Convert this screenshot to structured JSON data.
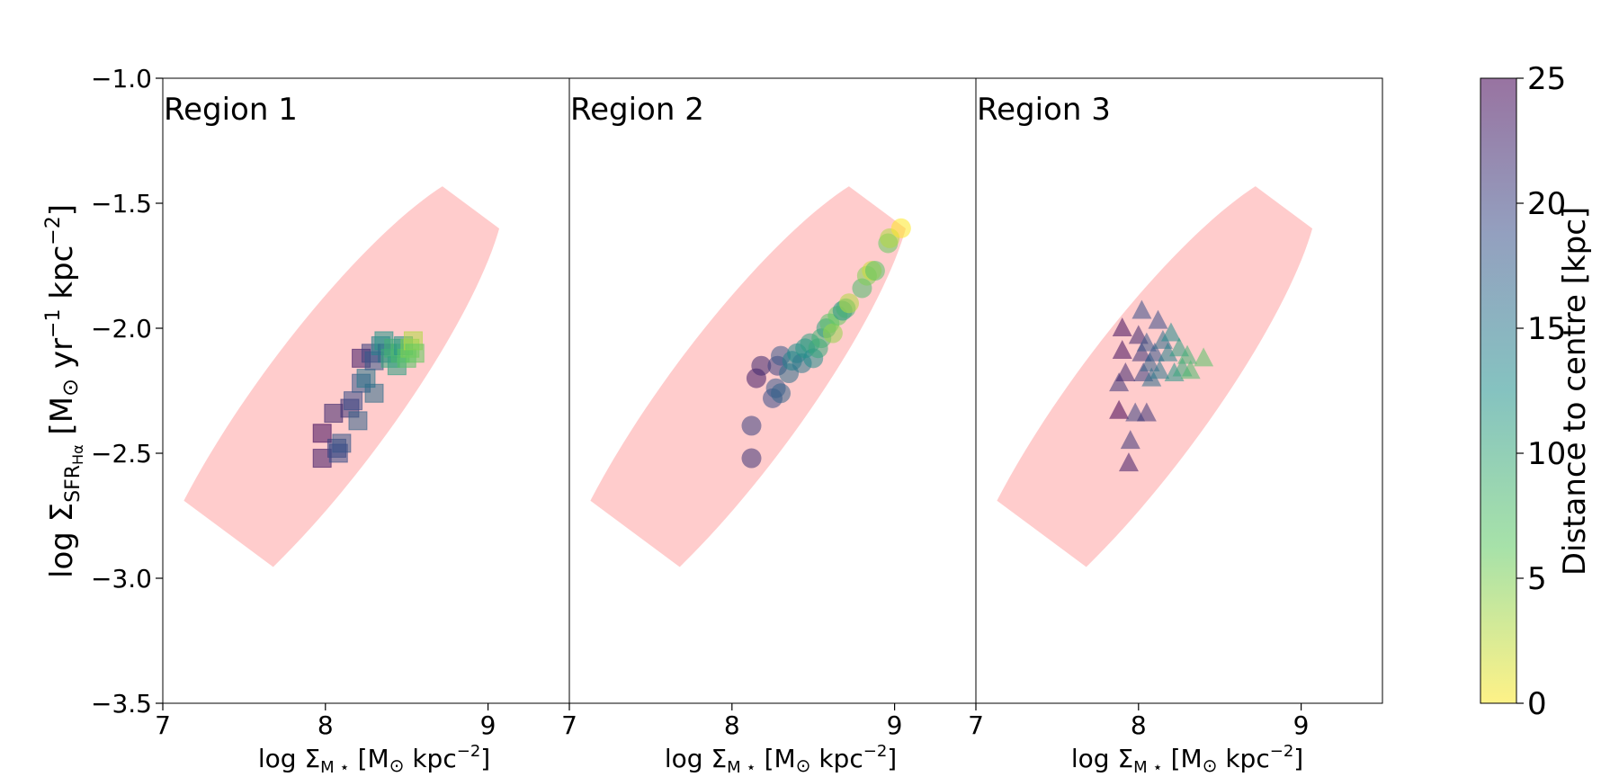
{
  "figure": {
    "ylabel_main": "log Σ",
    "ylabel_sub": "SFR",
    "ylabel_subsub": "Hα",
    "ylabel_units": "[M",
    "ylabel_units_sun": "⊙",
    "ylabel_units_rest": "yr",
    "ylabel_exp1": "−1",
    "ylabel_units_kpc": "kpc",
    "ylabel_exp2": "−2",
    "ylabel_close": "]",
    "xlabel_main": "log Σ",
    "xlabel_sub": "M ⋆",
    "xlabel_units": "[M",
    "xlabel_sun": "⊙",
    "xlabel_kpc": "kpc",
    "xlabel_exp": "−2",
    "xlabel_close": "]"
  },
  "colorbar": {
    "label": "Distance to centre [kpc]",
    "range": [
      0,
      25
    ],
    "ticks": [
      "0",
      "5",
      "10",
      "15",
      "20",
      "25"
    ],
    "colors": [
      "#fde725",
      "#5ec962",
      "#21918c",
      "#3b528b",
      "#440154"
    ],
    "alpha": 0.55
  },
  "chart_data": [
    {
      "type": "scatter",
      "title": "Region 1",
      "marker": "square",
      "xlim": [
        7,
        9.5
      ],
      "ylim": [
        -3.5,
        -1.0
      ],
      "x_ticks": [
        "7",
        "8",
        "9"
      ],
      "y_ticks": [
        "−3.5",
        "−3.0",
        "−2.5",
        "−2.0",
        "−1.5",
        "−1.0"
      ],
      "ellipse": {
        "center": [
          8.0,
          -2.3
        ],
        "semi_major_data_x": 1.05,
        "semi_major_data_y": 0.92,
        "semi_minor": 0.27,
        "color": "#ffcccc"
      },
      "points": [
        {
          "x": 7.98,
          "y": -2.42,
          "d": 24
        },
        {
          "x": 7.98,
          "y": -2.52,
          "d": 23
        },
        {
          "x": 8.07,
          "y": -2.48,
          "d": 20
        },
        {
          "x": 8.1,
          "y": -2.46,
          "d": 18
        },
        {
          "x": 8.08,
          "y": -2.5,
          "d": 19
        },
        {
          "x": 8.05,
          "y": -2.34,
          "d": 22
        },
        {
          "x": 8.15,
          "y": -2.32,
          "d": 21
        },
        {
          "x": 8.17,
          "y": -2.29,
          "d": 19
        },
        {
          "x": 8.2,
          "y": -2.37,
          "d": 17
        },
        {
          "x": 8.22,
          "y": -2.22,
          "d": 18
        },
        {
          "x": 8.25,
          "y": -2.2,
          "d": 15
        },
        {
          "x": 8.3,
          "y": -2.26,
          "d": 16
        },
        {
          "x": 8.22,
          "y": -2.12,
          "d": 23
        },
        {
          "x": 8.28,
          "y": -2.1,
          "d": 20
        },
        {
          "x": 8.3,
          "y": -2.13,
          "d": 18
        },
        {
          "x": 8.34,
          "y": -2.07,
          "d": 14
        },
        {
          "x": 8.36,
          "y": -2.05,
          "d": 12
        },
        {
          "x": 8.38,
          "y": -2.1,
          "d": 16
        },
        {
          "x": 8.4,
          "y": -2.12,
          "d": 10
        },
        {
          "x": 8.42,
          "y": -2.08,
          "d": 9
        },
        {
          "x": 8.44,
          "y": -2.15,
          "d": 11
        },
        {
          "x": 8.46,
          "y": -2.1,
          "d": 8
        },
        {
          "x": 8.48,
          "y": -2.07,
          "d": 12
        },
        {
          "x": 8.5,
          "y": -2.12,
          "d": 7
        },
        {
          "x": 8.52,
          "y": -2.08,
          "d": 5
        },
        {
          "x": 8.54,
          "y": -2.05,
          "d": 3
        },
        {
          "x": 8.55,
          "y": -2.1,
          "d": 6
        }
      ]
    },
    {
      "type": "scatter",
      "title": "Region 2",
      "marker": "circle",
      "xlim": [
        7,
        9.5
      ],
      "ylim": [
        -3.5,
        -1.0
      ],
      "x_ticks": [
        "7",
        "8",
        "9"
      ],
      "ellipse": {
        "center": [
          8.0,
          -2.3
        ],
        "semi_major_data_x": 1.05,
        "semi_major_data_y": 0.92,
        "semi_minor": 0.27,
        "color": "#ffcccc"
      },
      "points": [
        {
          "x": 8.12,
          "y": -2.39,
          "d": 20
        },
        {
          "x": 8.12,
          "y": -2.52,
          "d": 21
        },
        {
          "x": 8.15,
          "y": -2.2,
          "d": 23
        },
        {
          "x": 8.18,
          "y": -2.15,
          "d": 22
        },
        {
          "x": 8.25,
          "y": -2.28,
          "d": 19
        },
        {
          "x": 8.27,
          "y": -2.24,
          "d": 18
        },
        {
          "x": 8.3,
          "y": -2.26,
          "d": 17
        },
        {
          "x": 8.28,
          "y": -2.15,
          "d": 20
        },
        {
          "x": 8.3,
          "y": -2.11,
          "d": 18
        },
        {
          "x": 8.35,
          "y": -2.18,
          "d": 16
        },
        {
          "x": 8.37,
          "y": -2.13,
          "d": 14
        },
        {
          "x": 8.4,
          "y": -2.1,
          "d": 13
        },
        {
          "x": 8.43,
          "y": -2.14,
          "d": 15
        },
        {
          "x": 8.45,
          "y": -2.08,
          "d": 12
        },
        {
          "x": 8.48,
          "y": -2.06,
          "d": 11
        },
        {
          "x": 8.5,
          "y": -2.12,
          "d": 13
        },
        {
          "x": 8.53,
          "y": -2.08,
          "d": 10
        },
        {
          "x": 8.55,
          "y": -2.04,
          "d": 9
        },
        {
          "x": 8.58,
          "y": -2.0,
          "d": 11
        },
        {
          "x": 8.6,
          "y": -1.98,
          "d": 7
        },
        {
          "x": 8.62,
          "y": -2.02,
          "d": 4
        },
        {
          "x": 8.65,
          "y": -1.95,
          "d": 6
        },
        {
          "x": 8.68,
          "y": -1.93,
          "d": 12
        },
        {
          "x": 8.7,
          "y": -1.92,
          "d": 9
        },
        {
          "x": 8.72,
          "y": -1.9,
          "d": 3
        },
        {
          "x": 8.8,
          "y": -1.84,
          "d": 8
        },
        {
          "x": 8.83,
          "y": -1.79,
          "d": 5
        },
        {
          "x": 8.86,
          "y": -1.77,
          "d": 2
        },
        {
          "x": 8.88,
          "y": -1.77,
          "d": 7
        },
        {
          "x": 8.96,
          "y": -1.66,
          "d": 6
        },
        {
          "x": 8.97,
          "y": -1.64,
          "d": 3
        },
        {
          "x": 9.04,
          "y": -1.6,
          "d": 0
        }
      ]
    },
    {
      "type": "scatter",
      "title": "Region 3",
      "marker": "triangle",
      "xlim": [
        7,
        9.5
      ],
      "ylim": [
        -3.5,
        -1.0
      ],
      "x_ticks": [
        "7",
        "8",
        "9"
      ],
      "ellipse": {
        "center": [
          8.0,
          -2.3
        ],
        "semi_major_data_x": 1.05,
        "semi_major_data_y": 0.92,
        "semi_minor": 0.27,
        "color": "#ffcccc"
      },
      "points": [
        {
          "x": 7.9,
          "y": -2.0,
          "d": 24
        },
        {
          "x": 7.9,
          "y": -2.09,
          "d": 24
        },
        {
          "x": 7.88,
          "y": -2.22,
          "d": 21
        },
        {
          "x": 7.92,
          "y": -2.18,
          "d": 22
        },
        {
          "x": 7.88,
          "y": -2.33,
          "d": 25
        },
        {
          "x": 7.95,
          "y": -2.45,
          "d": 21
        },
        {
          "x": 7.94,
          "y": -2.54,
          "d": 23
        },
        {
          "x": 7.98,
          "y": -2.34,
          "d": 20
        },
        {
          "x": 8.02,
          "y": -1.93,
          "d": 19
        },
        {
          "x": 8.0,
          "y": -2.03,
          "d": 22
        },
        {
          "x": 8.02,
          "y": -2.1,
          "d": 21
        },
        {
          "x": 8.05,
          "y": -2.06,
          "d": 18
        },
        {
          "x": 8.03,
          "y": -2.18,
          "d": 20
        },
        {
          "x": 8.07,
          "y": -2.14,
          "d": 17
        },
        {
          "x": 8.05,
          "y": -2.34,
          "d": 21
        },
        {
          "x": 8.08,
          "y": -2.2,
          "d": 16
        },
        {
          "x": 8.1,
          "y": -2.1,
          "d": 18
        },
        {
          "x": 8.12,
          "y": -1.97,
          "d": 19
        },
        {
          "x": 8.13,
          "y": -2.17,
          "d": 15
        },
        {
          "x": 8.15,
          "y": -2.05,
          "d": 16
        },
        {
          "x": 8.18,
          "y": -2.1,
          "d": 14
        },
        {
          "x": 8.2,
          "y": -2.02,
          "d": 13
        },
        {
          "x": 8.22,
          "y": -2.18,
          "d": 12
        },
        {
          "x": 8.25,
          "y": -2.08,
          "d": 11
        },
        {
          "x": 8.27,
          "y": -2.16,
          "d": 10
        },
        {
          "x": 8.3,
          "y": -2.11,
          "d": 9
        },
        {
          "x": 8.32,
          "y": -2.17,
          "d": 8
        },
        {
          "x": 8.4,
          "y": -2.12,
          "d": 7
        }
      ]
    }
  ]
}
